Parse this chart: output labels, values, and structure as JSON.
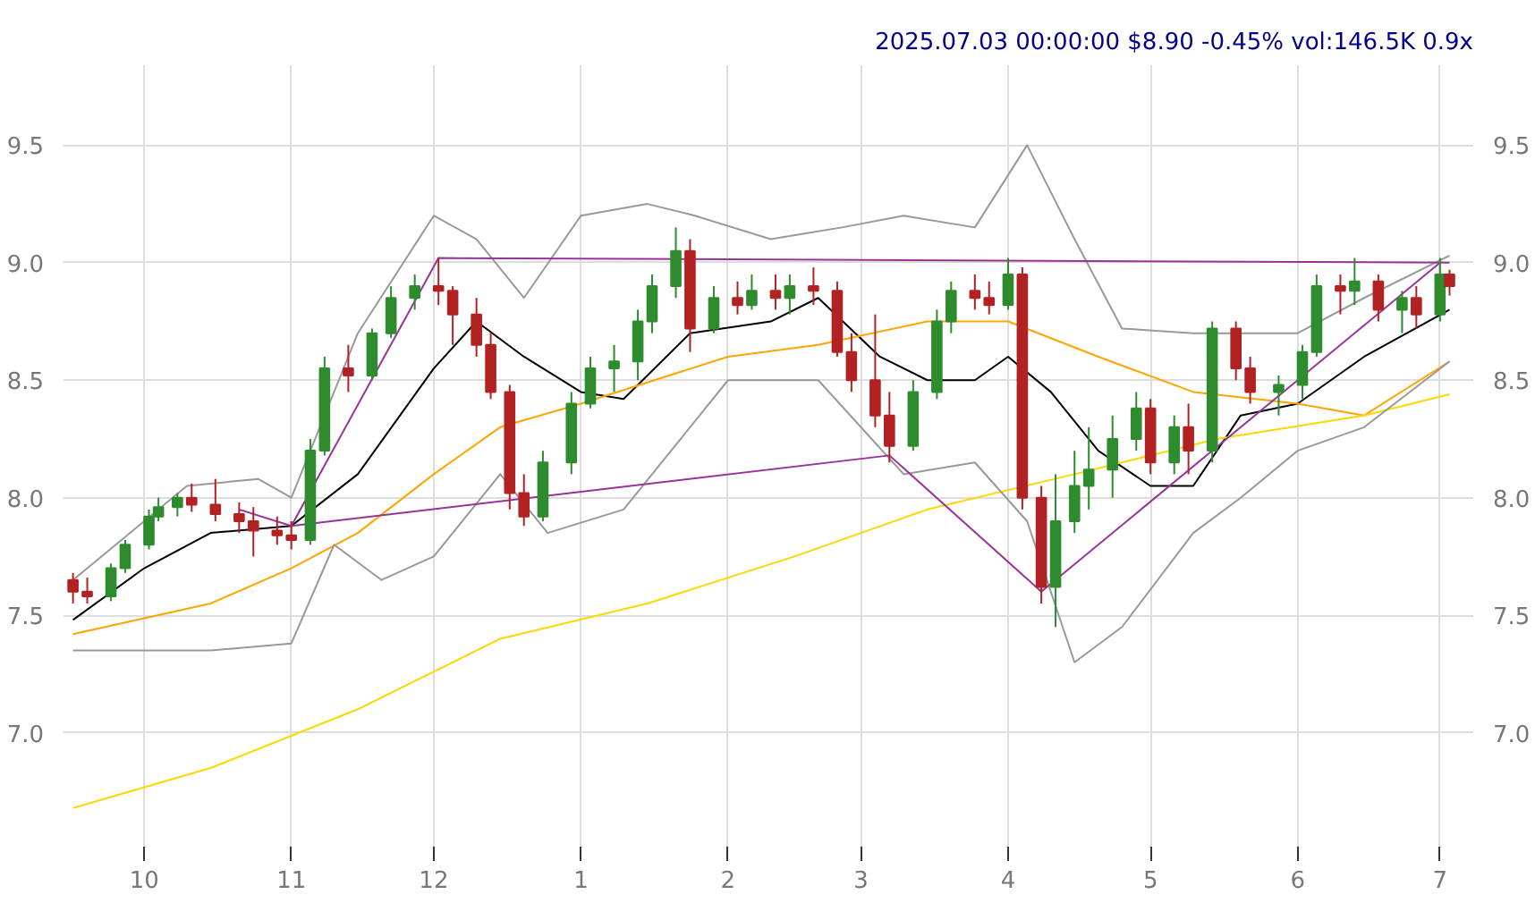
{
  "chart_data": {
    "type": "candlestick",
    "title": "2025.07.03 00:00:00 $8.90 -0.45% vol:146.5K 0.9x",
    "x": [
      "2024-09-16",
      "2024-09-19",
      "2024-09-24",
      "2024-09-27",
      "2024-10-02",
      "2024-10-04",
      "2024-10-08",
      "2024-10-11",
      "2024-10-16",
      "2024-10-21",
      "2024-10-24",
      "2024-10-29",
      "2024-11-01",
      "2024-11-05",
      "2024-11-08",
      "2024-11-13",
      "2024-11-18",
      "2024-11-22",
      "2024-11-27",
      "2024-12-02",
      "2024-12-05",
      "2024-12-10",
      "2024-12-13",
      "2024-12-17",
      "2024-12-20",
      "2024-12-24",
      "2024-12-30",
      "2025-01-03",
      "2025-01-08",
      "2025-01-13",
      "2025-01-16",
      "2025-01-21",
      "2025-01-24",
      "2025-01-29",
      "2025-02-03",
      "2025-02-06",
      "2025-02-11",
      "2025-02-14",
      "2025-02-19",
      "2025-02-24",
      "2025-02-27",
      "2025-03-04",
      "2025-03-07",
      "2025-03-12",
      "2025-03-17",
      "2025-03-20",
      "2025-03-25",
      "2025-03-28",
      "2025-04-01",
      "2025-04-04",
      "2025-04-08",
      "2025-04-11",
      "2025-04-15",
      "2025-04-18",
      "2025-04-23",
      "2025-04-28",
      "2025-05-01",
      "2025-05-06",
      "2025-05-09",
      "2025-05-14",
      "2025-05-19",
      "2025-05-22",
      "2025-05-28",
      "2025-06-02",
      "2025-06-05",
      "2025-06-10",
      "2025-06-13",
      "2025-06-18",
      "2025-06-23",
      "2025-06-26",
      "2025-07-01",
      "2025-07-03"
    ],
    "ohlc": [
      [
        7.65,
        7.68,
        7.55,
        7.6
      ],
      [
        7.6,
        7.66,
        7.55,
        7.58
      ],
      [
        7.58,
        7.72,
        7.56,
        7.7
      ],
      [
        7.7,
        7.82,
        7.68,
        7.8
      ],
      [
        7.8,
        7.95,
        7.78,
        7.92
      ],
      [
        7.92,
        8.0,
        7.9,
        7.96
      ],
      [
        7.96,
        8.02,
        7.92,
        8.0
      ],
      [
        8.0,
        8.06,
        7.94,
        7.97
      ],
      [
        7.97,
        8.08,
        7.9,
        7.93
      ],
      [
        7.93,
        7.98,
        7.85,
        7.9
      ],
      [
        7.9,
        7.96,
        7.75,
        7.86
      ],
      [
        7.86,
        7.92,
        7.8,
        7.84
      ],
      [
        7.84,
        7.9,
        7.78,
        7.82
      ],
      [
        7.82,
        8.25,
        7.8,
        8.2
      ],
      [
        8.2,
        8.6,
        8.18,
        8.55
      ],
      [
        8.55,
        8.65,
        8.45,
        8.52
      ],
      [
        8.52,
        8.72,
        8.5,
        8.7
      ],
      [
        8.7,
        8.9,
        8.68,
        8.85
      ],
      [
        8.85,
        8.95,
        8.8,
        8.9
      ],
      [
        8.9,
        9.02,
        8.82,
        8.88
      ],
      [
        8.88,
        8.9,
        8.65,
        8.78
      ],
      [
        8.78,
        8.85,
        8.6,
        8.65
      ],
      [
        8.65,
        8.7,
        8.42,
        8.45
      ],
      [
        8.45,
        8.48,
        7.95,
        8.02
      ],
      [
        8.02,
        8.1,
        7.88,
        7.92
      ],
      [
        7.92,
        8.2,
        7.9,
        8.15
      ],
      [
        8.15,
        8.45,
        8.1,
        8.4
      ],
      [
        8.4,
        8.6,
        8.38,
        8.55
      ],
      [
        8.55,
        8.65,
        8.45,
        8.58
      ],
      [
        8.58,
        8.8,
        8.5,
        8.75
      ],
      [
        8.75,
        8.95,
        8.7,
        8.9
      ],
      [
        8.9,
        9.15,
        8.85,
        9.05
      ],
      [
        9.05,
        9.1,
        8.62,
        8.72
      ],
      [
        8.72,
        8.9,
        8.7,
        8.85
      ],
      [
        8.85,
        8.92,
        8.78,
        8.82
      ],
      [
        8.82,
        8.95,
        8.8,
        8.88
      ],
      [
        8.88,
        8.95,
        8.8,
        8.85
      ],
      [
        8.85,
        8.95,
        8.78,
        8.9
      ],
      [
        8.9,
        8.98,
        8.82,
        8.88
      ],
      [
        8.88,
        8.92,
        8.6,
        8.62
      ],
      [
        8.62,
        8.7,
        8.45,
        8.5
      ],
      [
        8.5,
        8.78,
        8.3,
        8.35
      ],
      [
        8.35,
        8.45,
        8.15,
        8.22
      ],
      [
        8.22,
        8.5,
        8.2,
        8.45
      ],
      [
        8.45,
        8.8,
        8.42,
        8.75
      ],
      [
        8.75,
        8.92,
        8.7,
        8.88
      ],
      [
        8.88,
        8.95,
        8.8,
        8.85
      ],
      [
        8.85,
        8.92,
        8.78,
        8.82
      ],
      [
        8.82,
        9.02,
        8.8,
        8.95
      ],
      [
        8.95,
        8.98,
        7.95,
        8.0
      ],
      [
        8.0,
        8.05,
        7.55,
        7.62
      ],
      [
        7.62,
        8.1,
        7.45,
        7.9
      ],
      [
        7.9,
        8.2,
        7.85,
        8.05
      ],
      [
        8.05,
        8.3,
        7.95,
        8.12
      ],
      [
        8.12,
        8.35,
        8.0,
        8.25
      ],
      [
        8.25,
        8.45,
        8.2,
        8.38
      ],
      [
        8.38,
        8.42,
        8.1,
        8.15
      ],
      [
        8.15,
        8.35,
        8.1,
        8.3
      ],
      [
        8.3,
        8.4,
        8.1,
        8.2
      ],
      [
        8.2,
        8.75,
        8.15,
        8.72
      ],
      [
        8.72,
        8.75,
        8.5,
        8.55
      ],
      [
        8.55,
        8.6,
        8.4,
        8.45
      ],
      [
        8.45,
        8.52,
        8.35,
        8.48
      ],
      [
        8.48,
        8.65,
        8.42,
        8.62
      ],
      [
        8.62,
        8.95,
        8.6,
        8.9
      ],
      [
        8.9,
        8.95,
        8.78,
        8.88
      ],
      [
        8.88,
        9.02,
        8.82,
        8.92
      ],
      [
        8.92,
        8.95,
        8.75,
        8.8
      ],
      [
        8.8,
        8.88,
        8.7,
        8.85
      ],
      [
        8.85,
        8.9,
        8.72,
        8.78
      ],
      [
        8.78,
        9.02,
        8.75,
        8.95
      ],
      [
        8.95,
        8.97,
        8.86,
        8.9
      ]
    ],
    "colors": [
      "#b22222",
      "#b22222",
      "#2e8b2e",
      "#2e8b2e",
      "#2e8b2e",
      "#2e8b2e",
      "#2e8b2e",
      "#b22222",
      "#b22222",
      "#b22222",
      "#b22222",
      "#b22222",
      "#b22222",
      "#2e8b2e",
      "#2e8b2e",
      "#b22222",
      "#2e8b2e",
      "#2e8b2e",
      "#2e8b2e",
      "#b22222",
      "#b22222",
      "#b22222",
      "#b22222",
      "#b22222",
      "#b22222",
      "#2e8b2e",
      "#2e8b2e",
      "#2e8b2e",
      "#2e8b2e",
      "#2e8b2e",
      "#2e8b2e",
      "#2e8b2e",
      "#b22222",
      "#2e8b2e",
      "#b22222",
      "#2e8b2e",
      "#b22222",
      "#2e8b2e",
      "#b22222",
      "#b22222",
      "#b22222",
      "#b22222",
      "#b22222",
      "#2e8b2e",
      "#2e8b2e",
      "#2e8b2e",
      "#b22222",
      "#b22222",
      "#2e8b2e",
      "#b22222",
      "#b22222",
      "#2e8b2e",
      "#2e8b2e",
      "#2e8b2e",
      "#2e8b2e",
      "#2e8b2e",
      "#b22222",
      "#2e8b2e",
      "#b22222",
      "#2e8b2e",
      "#b22222",
      "#b22222",
      "#2e8b2e",
      "#2e8b2e",
      "#2e8b2e",
      "#b22222",
      "#2e8b2e",
      "#b22222",
      "#2e8b2e",
      "#b22222",
      "#2e8b2e",
      "#b22222"
    ],
    "series": [
      {
        "type": "line",
        "color": "#000000",
        "x": [
          "2024-09-16",
          "2024-10-01",
          "2024-10-15",
          "2024-11-01",
          "2024-11-15",
          "2024-12-01",
          "2024-12-10",
          "2024-12-20",
          "2025-01-01",
          "2025-01-10",
          "2025-01-24",
          "2025-02-10",
          "2025-02-20",
          "2025-03-05",
          "2025-03-15",
          "2025-03-25",
          "2025-04-01",
          "2025-04-10",
          "2025-04-20",
          "2025-05-01",
          "2025-05-10",
          "2025-05-20",
          "2025-06-01",
          "2025-06-15",
          "2025-07-03"
        ],
        "values": [
          7.48,
          7.7,
          7.85,
          7.88,
          8.1,
          8.55,
          8.75,
          8.6,
          8.45,
          8.42,
          8.7,
          8.75,
          8.85,
          8.6,
          8.5,
          8.5,
          8.6,
          8.45,
          8.2,
          8.05,
          8.05,
          8.35,
          8.4,
          8.6,
          8.8
        ]
      },
      {
        "type": "line",
        "color": "#ffa500",
        "x": [
          "2024-09-16",
          "2024-10-15",
          "2024-11-01",
          "2024-11-15",
          "2024-12-01",
          "2024-12-15",
          "2025-01-01",
          "2025-02-01",
          "2025-02-20",
          "2025-03-15",
          "2025-04-01",
          "2025-04-20",
          "2025-05-10",
          "2025-06-01",
          "2025-06-15",
          "2025-07-03"
        ],
        "values": [
          7.42,
          7.55,
          7.7,
          7.85,
          8.1,
          8.3,
          8.4,
          8.6,
          8.65,
          8.75,
          8.75,
          8.6,
          8.45,
          8.4,
          8.35,
          8.58
        ]
      },
      {
        "type": "line",
        "color": "#ffd700",
        "x": [
          "2024-09-16",
          "2024-10-15",
          "2024-11-15",
          "2024-12-15",
          "2025-01-15",
          "2025-02-15",
          "2025-03-15",
          "2025-04-15",
          "2025-05-15",
          "2025-06-15",
          "2025-07-03"
        ],
        "values": [
          6.68,
          6.85,
          7.1,
          7.4,
          7.55,
          7.75,
          7.95,
          8.1,
          8.25,
          8.35,
          8.44
        ]
      },
      {
        "type": "line",
        "color": "#999999",
        "x": [
          "2024-09-16",
          "2024-10-10",
          "2024-10-25",
          "2024-11-01",
          "2024-11-15",
          "2024-12-01",
          "2024-12-10",
          "2024-12-20",
          "2025-01-01",
          "2025-01-15",
          "2025-01-25",
          "2025-02-10",
          "2025-02-25",
          "2025-03-10",
          "2025-03-25",
          "2025-04-05",
          "2025-04-15",
          "2025-04-25",
          "2025-05-10",
          "2025-05-20",
          "2025-06-01",
          "2025-06-15",
          "2025-07-03"
        ],
        "values": [
          7.65,
          8.05,
          8.08,
          8.0,
          8.7,
          9.2,
          9.1,
          8.85,
          9.2,
          9.25,
          9.2,
          9.1,
          9.15,
          9.2,
          9.15,
          9.5,
          9.1,
          8.72,
          8.7,
          8.7,
          8.7,
          8.85,
          9.03
        ]
      },
      {
        "type": "line",
        "color": "#999999",
        "x": [
          "2024-09-16",
          "2024-10-15",
          "2024-11-01",
          "2024-11-10",
          "2024-11-20",
          "2024-12-01",
          "2024-12-15",
          "2024-12-25",
          "2025-01-10",
          "2025-01-20",
          "2025-02-01",
          "2025-02-20",
          "2025-03-10",
          "2025-03-25",
          "2025-04-05",
          "2025-04-15",
          "2025-04-25",
          "2025-05-10",
          "2025-05-20",
          "2025-06-01",
          "2025-06-15",
          "2025-07-03"
        ],
        "values": [
          7.35,
          7.35,
          7.38,
          7.8,
          7.65,
          7.75,
          8.1,
          7.85,
          7.95,
          8.2,
          8.5,
          8.5,
          8.1,
          8.15,
          7.9,
          7.3,
          7.45,
          7.85,
          8.0,
          8.2,
          8.3,
          8.58
        ]
      },
      {
        "type": "line",
        "color": "#993399",
        "x": [
          "2024-10-21",
          "2024-11-01",
          "2024-12-02",
          "2025-07-03"
        ],
        "values": [
          7.95,
          7.88,
          9.02,
          9.0
        ]
      },
      {
        "type": "line",
        "color": "#993399",
        "x": [
          "2024-11-01",
          "2025-03-07",
          "2025-04-08",
          "2025-07-01"
        ],
        "values": [
          7.88,
          8.18,
          7.6,
          9.0
        ]
      }
    ],
    "xlim": [
      "2024-09-14",
      "2025-07-08"
    ],
    "xticks": [
      {
        "value": "2024-10-01",
        "label": "10"
      },
      {
        "value": "2024-11-01",
        "label": "11"
      },
      {
        "value": "2024-12-01",
        "label": "12"
      },
      {
        "value": "2025-01-01",
        "label": "1"
      },
      {
        "value": "2025-02-01",
        "label": "2"
      },
      {
        "value": "2025-03-01",
        "label": "3"
      },
      {
        "value": "2025-04-01",
        "label": "4"
      },
      {
        "value": "2025-05-01",
        "label": "5"
      },
      {
        "value": "2025-06-01",
        "label": "6"
      },
      {
        "value": "2025-07-01",
        "label": "7"
      }
    ],
    "ylim": [
      6.5,
      9.84
    ],
    "yticks": [
      {
        "value": 7,
        "label": "7.0"
      },
      7.5,
      {
        "value": 8,
        "label": "8.0"
      },
      8.5,
      {
        "value": 9,
        "label": "9.0"
      },
      9.5
    ],
    "y2lim": [
      6.5,
      9.84
    ],
    "y2ticks": [
      {
        "value": 7,
        "label": "7.0"
      },
      7.5,
      {
        "value": 8,
        "label": "8.0"
      },
      8.5,
      {
        "value": 9,
        "label": "9.0"
      },
      9.5
    ],
    "grid": true
  }
}
